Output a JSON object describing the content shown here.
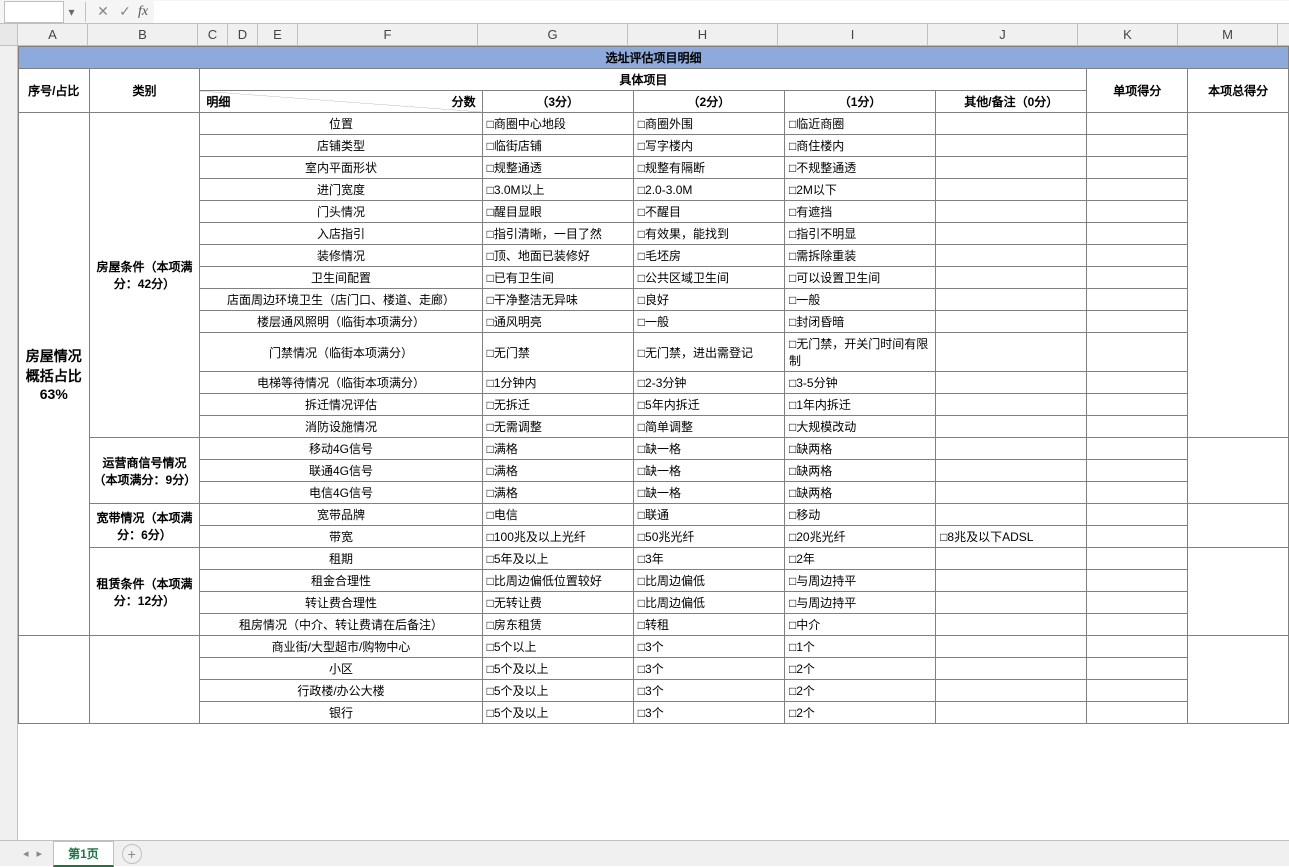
{
  "formula_bar": {
    "name_box": "",
    "cancel_glyph": "✕",
    "confirm_glyph": "✓",
    "fx_label": "fx",
    "formula_value": ""
  },
  "columns": [
    {
      "label": "A",
      "width": 70
    },
    {
      "label": "B",
      "width": 110
    },
    {
      "label": "C",
      "width": 30
    },
    {
      "label": "D",
      "width": 30
    },
    {
      "label": "E",
      "width": 40
    },
    {
      "label": "F",
      "width": 180
    },
    {
      "label": "G",
      "width": 150
    },
    {
      "label": "H",
      "width": 150
    },
    {
      "label": "I",
      "width": 150
    },
    {
      "label": "J",
      "width": 150
    },
    {
      "label": "K",
      "width": 100
    },
    {
      "label": "M",
      "width": 100
    }
  ],
  "title": "选址评估项目明细",
  "header": {
    "seq": "序号/占比",
    "category": "类别",
    "item": "具体项目",
    "single_score": "单项得分",
    "total_score": "本项总得分",
    "diag_top": "分数",
    "diag_bottom": "明细",
    "score3": "（3分）",
    "score2": "（2分）",
    "score1": "（1分）",
    "other": "其他/备注（0分）"
  },
  "section_label": "房屋情况概括占比63%",
  "groups": [
    {
      "category": "房屋条件（本项满分：42分）",
      "rows": [
        {
          "detail": "位置",
          "c3": "□商圈中心地段",
          "c2": "□商圈外围",
          "c1": "□临近商圈",
          "other": ""
        },
        {
          "detail": "店铺类型",
          "c3": "□临街店铺",
          "c2": "□写字楼内",
          "c1": "□商住楼内",
          "other": ""
        },
        {
          "detail": "室内平面形状",
          "c3": "□规整通透",
          "c2": "□规整有隔断",
          "c1": "□不规整通透",
          "other": ""
        },
        {
          "detail": "进门宽度",
          "c3": "□3.0M以上",
          "c2": "□2.0-3.0M",
          "c1": "□2M以下",
          "other": ""
        },
        {
          "detail": "门头情况",
          "c3": "□醒目显眼",
          "c2": "□不醒目",
          "c1": "□有遮挡",
          "other": ""
        },
        {
          "detail": "入店指引",
          "c3": "□指引清晰，一目了然",
          "c2": "□有效果，能找到",
          "c1": "□指引不明显",
          "other": ""
        },
        {
          "detail": "装修情况",
          "c3": "□顶、地面已装修好",
          "c2": "□毛坯房",
          "c1": "□需拆除重装",
          "other": ""
        },
        {
          "detail": "卫生间配置",
          "c3": "□已有卫生间",
          "c2": "□公共区域卫生间",
          "c1": "□可以设置卫生间",
          "other": ""
        },
        {
          "detail": "店面周边环境卫生（店门口、楼道、走廊）",
          "c3": "□干净整洁无异味",
          "c2": "□良好",
          "c1": "□一般",
          "other": ""
        },
        {
          "detail": "楼层通风照明（临街本项满分）",
          "c3": "□通风明亮",
          "c2": "□一般",
          "c1": "□封闭昏暗",
          "other": ""
        },
        {
          "detail": "门禁情况（临街本项满分）",
          "c3": "□无门禁",
          "c2": "□无门禁，进出需登记",
          "c1": "□无门禁，开关门时间有限制",
          "other": "",
          "tall": true
        },
        {
          "detail": "电梯等待情况（临街本项满分）",
          "c3": "□1分钟内",
          "c2": "□2-3分钟",
          "c1": "□3-5分钟",
          "other": ""
        },
        {
          "detail": "拆迁情况评估",
          "c3": "□无拆迁",
          "c2": "□5年内拆迁",
          "c1": "□1年内拆迁",
          "other": ""
        },
        {
          "detail": "消防设施情况",
          "c3": "□无需调整",
          "c2": "□简单调整",
          "c1": "□大规模改动",
          "other": ""
        }
      ]
    },
    {
      "category": "运营商信号情况（本项满分：9分）",
      "rows": [
        {
          "detail": "移动4G信号",
          "c3": "□满格",
          "c2": "□缺一格",
          "c1": "□缺两格",
          "other": ""
        },
        {
          "detail": "联通4G信号",
          "c3": "□满格",
          "c2": "□缺一格",
          "c1": "□缺两格",
          "other": ""
        },
        {
          "detail": "电信4G信号",
          "c3": "□满格",
          "c2": "□缺一格",
          "c1": "□缺两格",
          "other": ""
        }
      ]
    },
    {
      "category": "宽带情况（本项满分：6分）",
      "rows": [
        {
          "detail": "宽带品牌",
          "c3": "□电信",
          "c2": "□联通",
          "c1": "□移动",
          "other": ""
        },
        {
          "detail": "带宽",
          "c3": "□100兆及以上光纤",
          "c2": "□50兆光纤",
          "c1": "□20兆光纤",
          "other": "□8兆及以下ADSL"
        }
      ]
    },
    {
      "category": "租赁条件（本项满分：12分）",
      "rows": [
        {
          "detail": "租期",
          "c3": "□5年及以上",
          "c2": "□3年",
          "c1": "□2年",
          "other": ""
        },
        {
          "detail": "租金合理性",
          "c3": "□比周边偏低位置较好",
          "c2": "□比周边偏低",
          "c1": "□与周边持平",
          "other": ""
        },
        {
          "detail": "转让费合理性",
          "c3": "□无转让费",
          "c2": "□比周边偏低",
          "c1": "□与周边持平",
          "other": ""
        },
        {
          "detail": "租房情况（中介、转让费请在后备注）",
          "c3": "□房东租赁",
          "c2": "□转租",
          "c1": "□中介",
          "other": ""
        }
      ]
    }
  ],
  "tail_rows": [
    {
      "detail": "商业街/大型超市/购物中心",
      "c3": "□5个以上",
      "c2": "□3个",
      "c1": "□1个",
      "other": ""
    },
    {
      "detail": "小区",
      "c3": "□5个及以上",
      "c2": "□3个",
      "c1": "□2个",
      "other": ""
    },
    {
      "detail": "行政楼/办公大楼",
      "c3": "□5个及以上",
      "c2": "□3个",
      "c1": "□2个",
      "other": ""
    },
    {
      "detail": "银行",
      "c3": "□5个及以上",
      "c2": "□3个",
      "c1": "□2个",
      "other": ""
    }
  ],
  "tabs": {
    "active": "第1页",
    "add_glyph": "+"
  },
  "colors": {
    "title_bg": "#8ea9db",
    "border": "#808080"
  }
}
